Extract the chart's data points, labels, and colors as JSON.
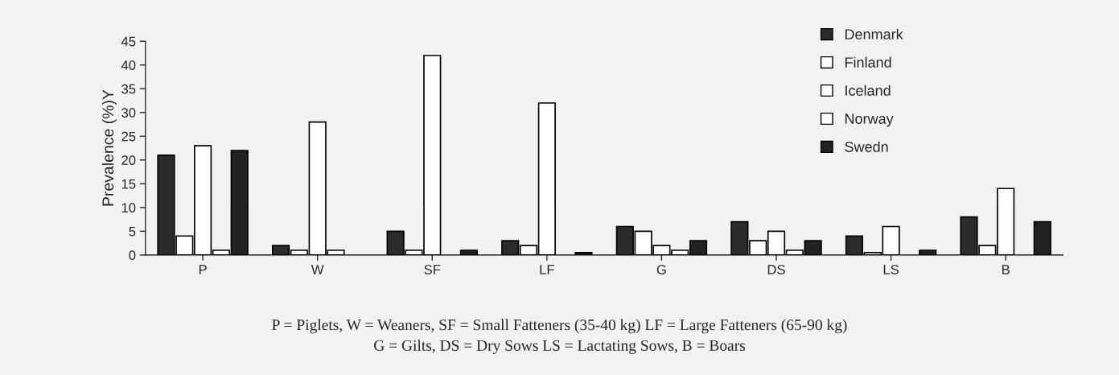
{
  "chart_data": {
    "type": "bar",
    "ylabel": "Prevalence (%)Y",
    "categories": [
      "P",
      "W",
      "SF",
      "LF",
      "G",
      "DS",
      "LS",
      "B"
    ],
    "series": [
      {
        "name": "Denmark",
        "color": "#2b2b2b",
        "values": [
          21,
          2,
          5,
          3,
          6,
          7,
          4,
          8
        ]
      },
      {
        "name": "Finland",
        "color": "#ffffff",
        "values": [
          4,
          1,
          1,
          2,
          5,
          3,
          0.5,
          2
        ]
      },
      {
        "name": "Iceland",
        "color": "#ffffff",
        "values": [
          23,
          28,
          42,
          32,
          2,
          5,
          6,
          14
        ]
      },
      {
        "name": "Norway",
        "color": "#ffffff",
        "values": [
          1,
          1,
          0,
          0,
          1,
          1,
          0,
          0
        ]
      },
      {
        "name": "Swedn",
        "color": "#222222",
        "values": [
          22,
          0,
          1,
          0.5,
          3,
          3,
          1,
          7
        ]
      }
    ],
    "ylim": [
      0,
      45
    ],
    "yticks": [
      0,
      5,
      10,
      15,
      20,
      25,
      30,
      35,
      40,
      45
    ],
    "grid": false,
    "legend": "top right",
    "annotations": [
      "P = Piglets, W = Weaners, SF = Small Fatteners (35-40 kg) LF = Large Fatteners (65-90 kg)",
      "G = Gilts, DS = Dry Sows LS = Lactating Sows, B = Boars"
    ]
  }
}
